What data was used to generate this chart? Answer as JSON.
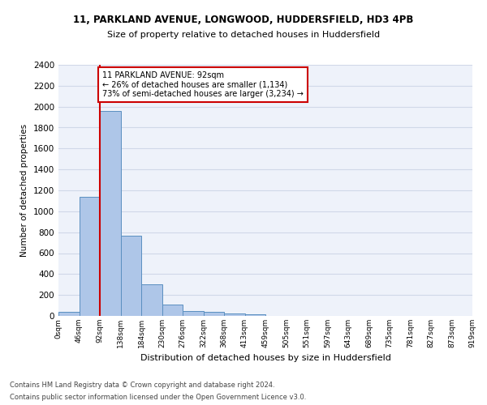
{
  "title_line1": "11, PARKLAND AVENUE, LONGWOOD, HUDDERSFIELD, HD3 4PB",
  "title_line2": "Size of property relative to detached houses in Huddersfield",
  "xlabel": "Distribution of detached houses by size in Huddersfield",
  "ylabel": "Number of detached properties",
  "footnote1": "Contains HM Land Registry data © Crown copyright and database right 2024.",
  "footnote2": "Contains public sector information licensed under the Open Government Licence v3.0.",
  "bin_labels": [
    "0sqm",
    "46sqm",
    "92sqm",
    "138sqm",
    "184sqm",
    "230sqm",
    "276sqm",
    "322sqm",
    "368sqm",
    "413sqm",
    "459sqm",
    "505sqm",
    "551sqm",
    "597sqm",
    "643sqm",
    "689sqm",
    "735sqm",
    "781sqm",
    "827sqm",
    "873sqm",
    "919sqm"
  ],
  "bar_values": [
    35,
    1135,
    1960,
    770,
    300,
    105,
    48,
    40,
    27,
    12,
    0,
    0,
    0,
    0,
    0,
    0,
    0,
    0,
    0,
    0
  ],
  "bar_color": "#aec6e8",
  "bar_edge_color": "#5a8fc0",
  "grid_color": "#d0d8e8",
  "background_color": "#eef2fa",
  "ylim": [
    0,
    2400
  ],
  "yticks": [
    0,
    200,
    400,
    600,
    800,
    1000,
    1200,
    1400,
    1600,
    1800,
    2000,
    2200,
    2400
  ],
  "property_line_x": 2,
  "property_line_color": "#cc0000",
  "annotation_text": "11 PARKLAND AVENUE: 92sqm\n← 26% of detached houses are smaller (1,134)\n73% of semi-detached houses are larger (3,234) →",
  "annotation_box_color": "#cc0000",
  "bar_edge_width": 0.7,
  "title1_fontsize": 8.5,
  "title2_fontsize": 8.0,
  "xlabel_fontsize": 8.0,
  "ylabel_fontsize": 7.5,
  "footnote_fontsize": 6.0,
  "annotation_fontsize": 7.0
}
